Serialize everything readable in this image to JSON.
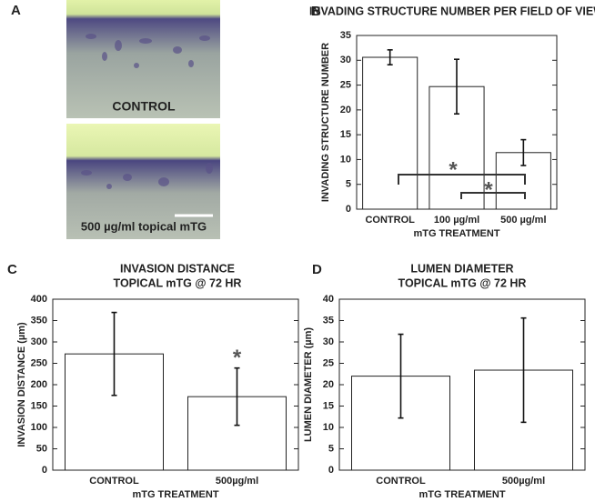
{
  "images": {
    "panel_label": "A",
    "top_caption": "CONTROL",
    "bottom_caption": "500 µg/ml topical mTG"
  },
  "chart_data": [
    {
      "type": "bar",
      "panel_label": "B",
      "title": "INVADING STRUCTURE NUMBER PER FIELD OF VIEW",
      "categories": [
        "CONTROL",
        "100 µg/ml",
        "500 µg/ml"
      ],
      "values": [
        30.6,
        24.7,
        11.4
      ],
      "errors": [
        1.5,
        5.5,
        2.6
      ],
      "xlabel": "mTG TREATMENT",
      "ylabel": "INVADING STRUCTURE NUMBER",
      "ylim": [
        0,
        35
      ],
      "yticks": [
        0,
        5,
        10,
        15,
        20,
        25,
        30,
        35
      ],
      "color": "#ffffff",
      "annotations": [
        {
          "text": "*"
        },
        {
          "text": "*"
        }
      ]
    },
    {
      "type": "bar",
      "panel_label": "C",
      "title": "INVASION DISTANCE",
      "subtitle": "TOPICAL mTG @ 72 HR",
      "categories": [
        "CONTROL",
        "500µg/ml"
      ],
      "values": [
        272,
        172
      ],
      "errors": [
        97,
        67
      ],
      "xlabel": "mTG TREATMENT",
      "ylabel": "INVASION DISTANCE (µm)",
      "ylim": [
        0,
        400
      ],
      "yticks": [
        0,
        50,
        100,
        150,
        200,
        250,
        300,
        350,
        400
      ],
      "color": "#ffffff",
      "annotations": [
        {
          "text": "*"
        }
      ]
    },
    {
      "type": "bar",
      "panel_label": "D",
      "title": "LUMEN DIAMETER",
      "subtitle": "TOPICAL mTG @ 72 HR",
      "categories": [
        "CONTROL",
        "500µg/ml"
      ],
      "values": [
        22,
        23.4
      ],
      "errors": [
        9.8,
        12.2
      ],
      "xlabel": "mTG TREATMENT",
      "ylabel": "LUMEN DIAMETER (µm)",
      "ylim": [
        0,
        40
      ],
      "yticks": [
        0,
        5,
        10,
        15,
        20,
        25,
        30,
        35,
        40
      ],
      "color": "#ffffff"
    }
  ]
}
